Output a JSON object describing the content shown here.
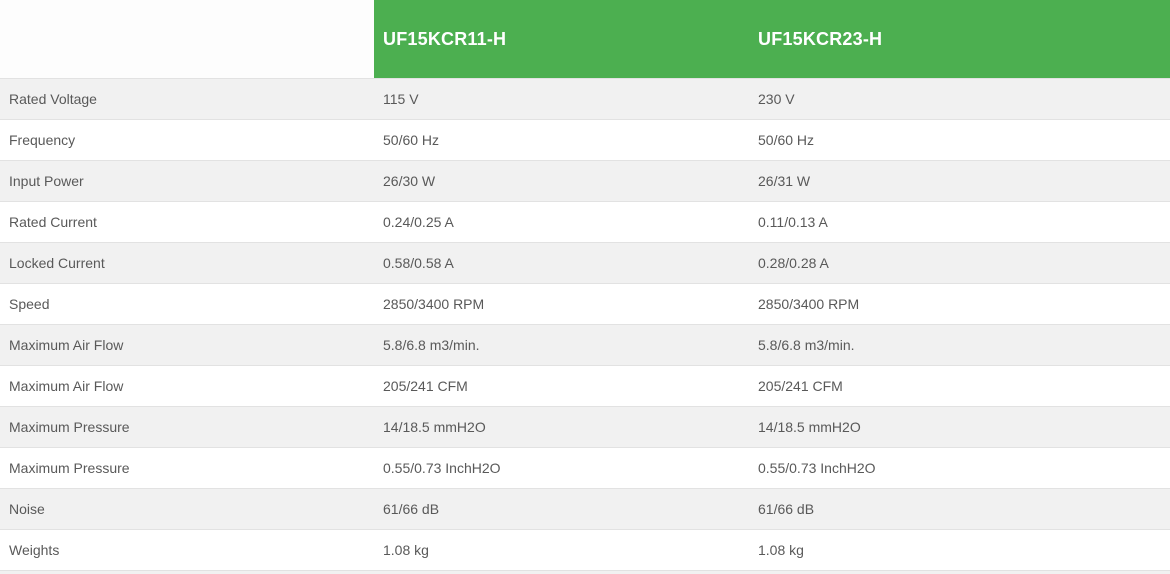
{
  "table": {
    "columns": [
      {
        "label": "UF15KCR11-H"
      },
      {
        "label": "UF15KCR23-H"
      }
    ],
    "rows": [
      {
        "label": "Rated Voltage",
        "values": [
          "115 V",
          "230 V"
        ]
      },
      {
        "label": "Frequency",
        "values": [
          "50/60 Hz",
          "50/60 Hz"
        ]
      },
      {
        "label": "Input Power",
        "values": [
          "26/30 W",
          "26/31 W"
        ]
      },
      {
        "label": "Rated Current",
        "values": [
          "0.24/0.25 A",
          "0.11/0.13 A"
        ]
      },
      {
        "label": "Locked Current",
        "values": [
          "0.58/0.58 A",
          "0.28/0.28 A"
        ]
      },
      {
        "label": "Speed",
        "values": [
          "2850/3400 RPM",
          "2850/3400 RPM"
        ]
      },
      {
        "label": "Maximum Air Flow",
        "values": [
          "5.8/6.8 m3/min.",
          "5.8/6.8 m3/min."
        ]
      },
      {
        "label": "Maximum Air Flow",
        "values": [
          "205/241 CFM",
          "205/241 CFM"
        ]
      },
      {
        "label": "Maximum Pressure",
        "values": [
          "14/18.5 mmH2O",
          "14/18.5 mmH2O"
        ]
      },
      {
        "label": "Maximum Pressure",
        "values": [
          "0.55/0.73 InchH2O",
          "0.55/0.73 InchH2O"
        ]
      },
      {
        "label": "Noise",
        "values": [
          "61/66 dB",
          "61/66 dB"
        ]
      },
      {
        "label": "Weights",
        "values": [
          "1.08 kg",
          "1.08 kg"
        ]
      }
    ],
    "colors": {
      "header_bg": "#4caf50",
      "header_text": "#ffffff",
      "row_alt_bg": "#f1f1f1",
      "row_bg": "#ffffff",
      "border": "#e2e2e2",
      "text": "#595959"
    }
  }
}
